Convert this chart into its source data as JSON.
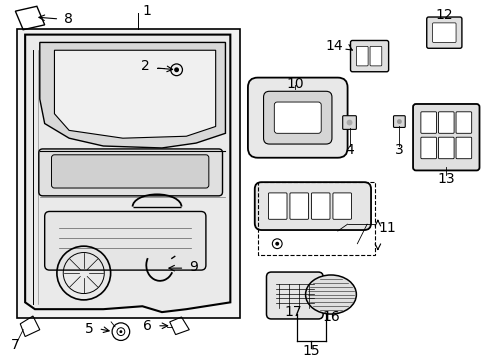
{
  "background_color": "#ffffff",
  "line_color": "#000000",
  "text_color": "#000000",
  "font_size": 9,
  "fig_width": 4.89,
  "fig_height": 3.6,
  "dpi": 100
}
